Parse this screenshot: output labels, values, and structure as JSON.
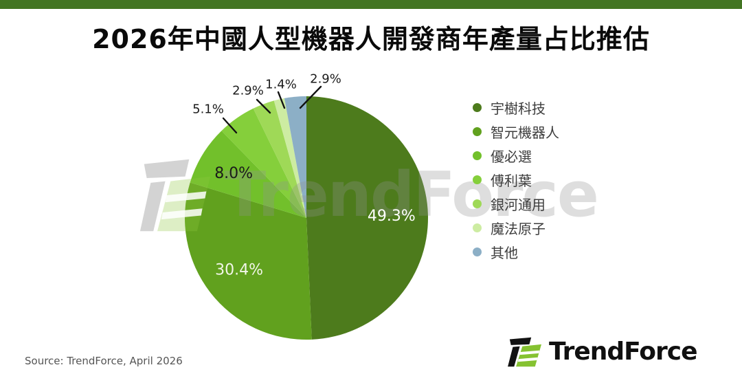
{
  "page": {
    "background": "#ffffff",
    "accent_bar_color": "#427522"
  },
  "title": {
    "text": "2026年中國人型機器人開發商年產量占比推估"
  },
  "chart_data": {
    "type": "pie",
    "title": "2026年中國人型機器人開發商年產量占比推估",
    "unit": "%",
    "start_angle_deg": 0,
    "direction": "clockwise",
    "legend_position": "right",
    "series": [
      {
        "name": "宇樹科技",
        "value": 49.3,
        "label": "49.3%",
        "color": "#4d7b1c",
        "label_placement": "inside",
        "label_color": "#ffffff"
      },
      {
        "name": "智元機器人",
        "value": 30.4,
        "label": "30.4%",
        "color": "#61a11e",
        "label_placement": "inside",
        "label_color": "#f2f6e8"
      },
      {
        "name": "優必選",
        "value": 8.0,
        "label": "8.0%",
        "color": "#72c02b",
        "label_placement": "inside",
        "label_color": "#1b1b1b"
      },
      {
        "name": "傅利葉",
        "value": 5.1,
        "label": "5.1%",
        "color": "#85cf3b",
        "label_placement": "outside",
        "label_color": "#1b1b1b"
      },
      {
        "name": "銀河通用",
        "value": 2.9,
        "label": "2.9%",
        "color": "#9fd957",
        "label_placement": "outside",
        "label_color": "#1b1b1b"
      },
      {
        "name": "魔法原子",
        "value": 1.4,
        "label": "1.4%",
        "color": "#cdeca2",
        "label_placement": "outside",
        "label_color": "#1b1b1b"
      },
      {
        "name": "其他",
        "value": 2.9,
        "label": "2.9%",
        "color": "#8cafc6",
        "label_placement": "outside",
        "label_color": "#1b1b1b"
      }
    ]
  },
  "watermark": {
    "text": "TrendForce"
  },
  "footer": {
    "source": "Source: TrendForce, April 2026"
  },
  "logo": {
    "text": "TrendForce"
  }
}
